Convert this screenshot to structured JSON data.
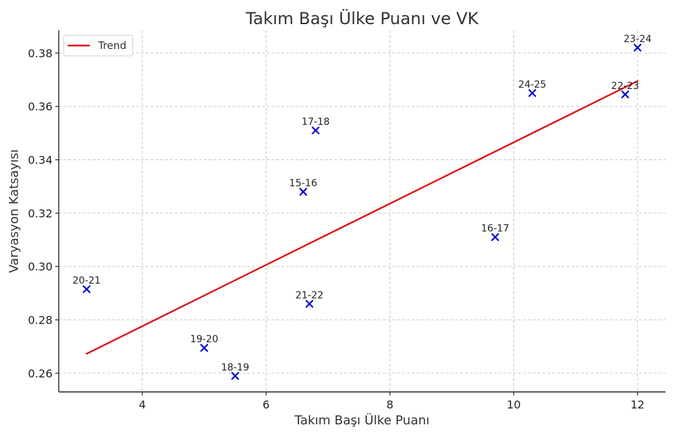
{
  "chart_data": {
    "type": "scatter",
    "title": "Takım Başı Ülke Puanı ve VK",
    "xlabel": "Takım Başı Ülke Puanı",
    "ylabel": "Varyasyon Katsayısı",
    "xlim": [
      2.65,
      12.45
    ],
    "ylim": [
      0.253,
      0.3885
    ],
    "xticks": [
      4,
      6,
      8,
      10,
      12
    ],
    "yticks": [
      0.26,
      0.28,
      0.3,
      0.32,
      0.34,
      0.36,
      0.38
    ],
    "grid": true,
    "legend_position": "top-left",
    "marker_color": "#0000cc",
    "trend_color": "#dd1111",
    "points": [
      {
        "label": "15-16",
        "x": 6.6,
        "y": 0.328
      },
      {
        "label": "16-17",
        "x": 9.7,
        "y": 0.311
      },
      {
        "label": "17-18",
        "x": 6.8,
        "y": 0.351
      },
      {
        "label": "18-19",
        "x": 5.5,
        "y": 0.259
      },
      {
        "label": "19-20",
        "x": 5.0,
        "y": 0.2695
      },
      {
        "label": "20-21",
        "x": 3.1,
        "y": 0.2915
      },
      {
        "label": "21-22",
        "x": 6.7,
        "y": 0.286
      },
      {
        "label": "22-23",
        "x": 11.8,
        "y": 0.3645
      },
      {
        "label": "23-24",
        "x": 12.0,
        "y": 0.382
      },
      {
        "label": "24-25",
        "x": 10.3,
        "y": 0.365
      }
    ],
    "trend": {
      "name": "Trend",
      "x": [
        3.1,
        12.0
      ],
      "y": [
        0.2673,
        0.3695
      ]
    }
  }
}
